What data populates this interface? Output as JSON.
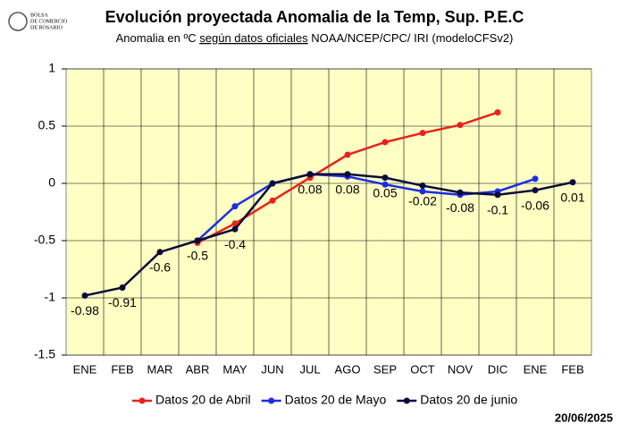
{
  "logo": {
    "lines": [
      "BOLSA",
      "DE COMERCIO",
      "DE ROSARIO"
    ]
  },
  "date": "20/06/2025",
  "chart_data": {
    "type": "line",
    "title": "Evolución proyectada Anomalia de la Temp, Sup.  P.E.C",
    "subtitle": {
      "before": "Anomalia en ºC ",
      "underlined": "según datos oficiales",
      "after": " NOAA/NCEP/CPC/ IRI (modeloCFSv2)"
    },
    "categories": [
      "ENE",
      "FEB",
      "MAR",
      "ABR",
      "MAY",
      "JUN",
      "JUL",
      "AGO",
      "SEP",
      "OCT",
      "NOV",
      "DIC",
      "ENE",
      "FEB"
    ],
    "ylim": [
      -1.5,
      1
    ],
    "yticks": [
      1,
      0.5,
      0,
      -0.5,
      -1,
      -1.5
    ],
    "grid": true,
    "legend": "bottom",
    "series": [
      {
        "name": "Datos 20 de Abril",
        "color": "#e8221b",
        "values": [
          null,
          null,
          null,
          -0.52,
          -0.35,
          -0.15,
          0.05,
          0.25,
          0.36,
          0.44,
          0.51,
          0.62,
          null,
          null
        ]
      },
      {
        "name": "Datos 20 de Mayo",
        "color": "#1a2ee8",
        "values": [
          null,
          null,
          null,
          -0.5,
          -0.2,
          0.0,
          0.08,
          0.06,
          -0.01,
          -0.07,
          -0.1,
          -0.07,
          0.04,
          null
        ]
      },
      {
        "name": "Datos 20 de junio",
        "color": "#0a0a3a",
        "values": [
          -0.98,
          -0.91,
          -0.6,
          -0.5,
          -0.4,
          0.0,
          0.08,
          0.08,
          0.05,
          -0.02,
          -0.08,
          -0.1,
          -0.06,
          0.01
        ],
        "value_labels": [
          "-0.98",
          "-0.91",
          "-0.6",
          "-0.5",
          "-0.4",
          null,
          "0.08",
          "0.08",
          "0.05",
          "-0.02",
          "-0.08",
          "-0.1",
          "-0.06",
          "0.01"
        ]
      }
    ]
  }
}
